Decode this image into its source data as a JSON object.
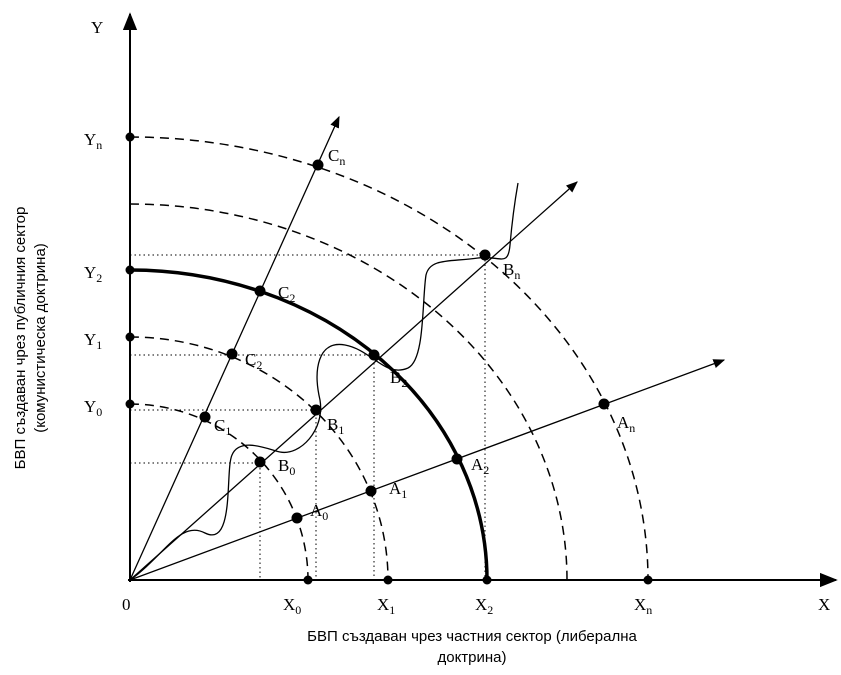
{
  "axes": {
    "origin": "0",
    "x_symbol": "X",
    "y_symbol": "Y",
    "x_title_line1": "БВП създаван чрез частния сектор (либерална",
    "x_title_line2": "доктрина)",
    "y_title_line1": "БВП създаван чрез публичния сектор",
    "y_title_line2": "(комунистическа доктрина)"
  },
  "x_ticks": [
    {
      "base": "X",
      "sub": "0"
    },
    {
      "base": "X",
      "sub": "1"
    },
    {
      "base": "X",
      "sub": "2"
    },
    {
      "base": "X",
      "sub": "n"
    }
  ],
  "y_ticks": [
    {
      "base": "Y",
      "sub": "0"
    },
    {
      "base": "Y",
      "sub": "1"
    },
    {
      "base": "Y",
      "sub": "2"
    },
    {
      "base": "Y",
      "sub": "n"
    }
  ],
  "points": {
    "A": [
      {
        "base": "A",
        "sub": "0"
      },
      {
        "base": "A",
        "sub": "1"
      },
      {
        "base": "A",
        "sub": "2"
      },
      {
        "base": "A",
        "sub": "n"
      }
    ],
    "B": [
      {
        "base": "B",
        "sub": "0"
      },
      {
        "base": "B",
        "sub": "1"
      },
      {
        "base": "B",
        "sub": "2"
      },
      {
        "base": "B",
        "sub": "n"
      }
    ],
    "C": [
      {
        "base": "C",
        "sub": "1"
      },
      {
        "base": "C",
        "sub": "2"
      },
      {
        "base": "C",
        "sub": "n"
      }
    ]
  }
}
